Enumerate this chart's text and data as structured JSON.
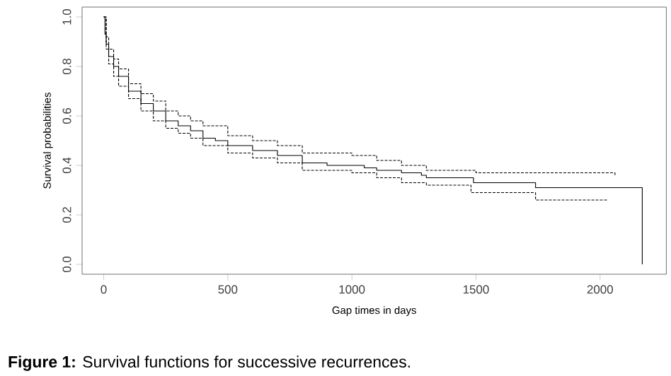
{
  "chart_data": {
    "type": "step",
    "xlabel": "Gap times in days",
    "ylabel": "Survival probabilities",
    "annotations": [
      "**Figure 1:** Survival functions for successive recurrences."
    ],
    "xlim": [
      -87,
      2267
    ],
    "ylim": [
      -0.04,
      1.04
    ],
    "xticks": [
      0,
      500,
      1000,
      1500,
      2000
    ],
    "yticks": [
      {
        "value": 0,
        "label": "0.0"
      },
      0.2,
      0.4,
      0.6,
      0.8,
      {
        "value": 1,
        "label": "1.0"
      }
    ],
    "grid": false,
    "series": [
      {
        "color": "#000000",
        "line_style": "solid",
        "x": [
          0,
          5,
          10,
          20,
          40,
          60,
          100,
          150,
          200,
          250,
          300,
          350,
          400,
          450,
          500,
          600,
          700,
          800,
          900,
          1000,
          1050,
          1100,
          1200,
          1280,
          1300,
          1490,
          1740,
          2170,
          2170
        ],
        "values": [
          1.0,
          0.93,
          0.89,
          0.84,
          0.8,
          0.76,
          0.7,
          0.65,
          0.62,
          0.58,
          0.56,
          0.54,
          0.51,
          0.5,
          0.48,
          0.46,
          0.44,
          0.41,
          0.4,
          0.4,
          0.39,
          0.38,
          0.37,
          0.36,
          0.35,
          0.33,
          0.31,
          0.31,
          0.0
        ]
      },
      {
        "color": "#000000",
        "line_style": "dashed",
        "x": [
          0,
          10,
          20,
          40,
          60,
          100,
          150,
          200,
          250,
          300,
          350,
          400,
          500,
          600,
          700,
          800,
          1000,
          1100,
          1200,
          1300,
          1500,
          2060
        ],
        "values": [
          1.0,
          0.92,
          0.87,
          0.83,
          0.79,
          0.73,
          0.69,
          0.66,
          0.62,
          0.6,
          0.58,
          0.56,
          0.52,
          0.5,
          0.48,
          0.45,
          0.44,
          0.42,
          0.4,
          0.38,
          0.37,
          0.36
        ]
      },
      {
        "color": "#000000",
        "line_style": "dashed",
        "x": [
          0,
          10,
          20,
          40,
          60,
          100,
          150,
          200,
          250,
          300,
          350,
          400,
          500,
          600,
          700,
          800,
          1000,
          1100,
          1200,
          1300,
          1480,
          1740,
          2030
        ],
        "values": [
          1.0,
          0.87,
          0.81,
          0.76,
          0.72,
          0.67,
          0.62,
          0.58,
          0.55,
          0.53,
          0.51,
          0.48,
          0.45,
          0.43,
          0.41,
          0.38,
          0.37,
          0.35,
          0.33,
          0.32,
          0.29,
          0.26,
          0.26
        ]
      }
    ]
  }
}
